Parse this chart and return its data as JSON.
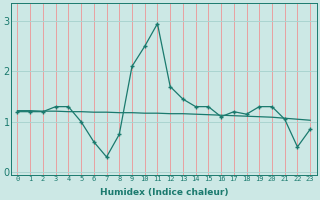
{
  "xlabel": "Humidex (Indice chaleur)",
  "background_color": "#cce8e5",
  "grid_color_v": "#e8a0a0",
  "grid_color_h": "#aad4d0",
  "line_color": "#1a7a6e",
  "xlim": [
    -0.5,
    23.5
  ],
  "ylim": [
    -0.05,
    3.35
  ],
  "yticks": [
    0,
    1,
    2,
    3
  ],
  "xticks": [
    0,
    1,
    2,
    3,
    4,
    5,
    6,
    7,
    8,
    9,
    10,
    11,
    12,
    13,
    14,
    15,
    16,
    17,
    18,
    19,
    20,
    21,
    22,
    23
  ],
  "main_y": [
    1.2,
    1.2,
    1.2,
    1.3,
    1.3,
    1.0,
    0.6,
    0.3,
    0.75,
    2.1,
    2.5,
    2.95,
    1.7,
    1.45,
    1.3,
    1.3,
    1.1,
    1.2,
    1.15,
    1.3,
    1.3,
    1.05,
    0.5,
    0.85
  ],
  "trend_y": [
    1.22,
    1.22,
    1.21,
    1.21,
    1.2,
    1.2,
    1.19,
    1.19,
    1.18,
    1.18,
    1.17,
    1.17,
    1.16,
    1.16,
    1.15,
    1.14,
    1.13,
    1.12,
    1.11,
    1.1,
    1.09,
    1.07,
    1.05,
    1.03
  ]
}
